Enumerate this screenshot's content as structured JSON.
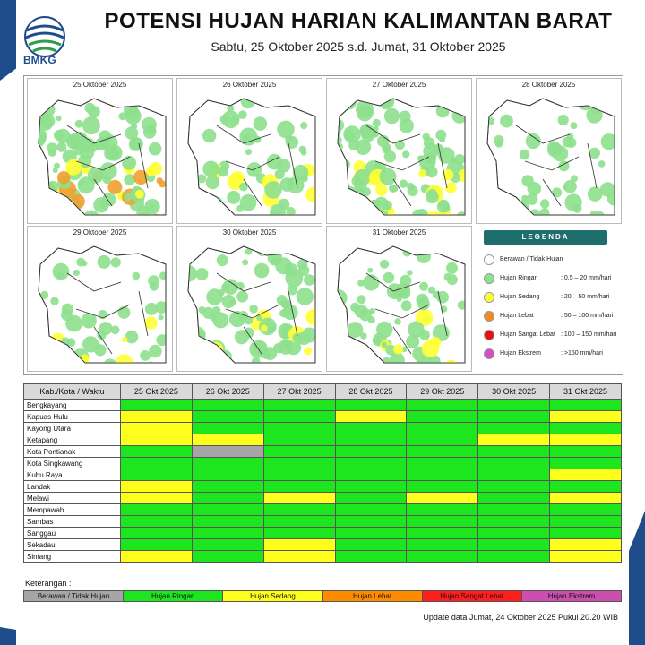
{
  "header": {
    "logo_text": "BMKG",
    "title": "POTENSI HUJAN HARIAN KALIMANTAN BARAT",
    "subtitle": "Sabtu, 25 Oktober 2025 s.d. Jumat, 31 Oktober 2025"
  },
  "maps": [
    {
      "date": "25 Oktober 2025"
    },
    {
      "date": "26 Oktober 2025"
    },
    {
      "date": "27 Oktober 2025"
    },
    {
      "date": "28 Oktober 2025"
    },
    {
      "date": "29 Oktober 2025"
    },
    {
      "date": "30 Oktober 2025"
    },
    {
      "date": "31 Oktober 2025"
    }
  ],
  "legend": {
    "title": "LEGENDA",
    "items": [
      {
        "label": "Berawan / Tidak Hujan",
        "range": "",
        "color": "#ffffff"
      },
      {
        "label": "Hujan Ringan",
        "range": ": 0.5 – 20 mm/hari",
        "color": "#8ee08e"
      },
      {
        "label": "Hujan Sedang",
        "range": ": 20 – 50 mm/hari",
        "color": "#ffff33"
      },
      {
        "label": "Hujan Lebat",
        "range": ": 50 – 100 mm/hari",
        "color": "#f08c1e"
      },
      {
        "label": "Hujan Sangat Lebat",
        "range": ": 100 – 150 mm/hari",
        "color": "#e81010"
      },
      {
        "label": "Hujan Ekstrem",
        "range": ": >150 mm/hari",
        "color": "#d24fc8"
      }
    ]
  },
  "table": {
    "header_label": "Kab./Kota / Waktu",
    "dates": [
      "25 Okt 2025",
      "26 Okt 2025",
      "27 Okt 2025",
      "28 Okt 2025",
      "29 Okt 2025",
      "30 Okt 2025",
      "31 Okt 2025"
    ],
    "rows": [
      {
        "name": "Bengkayang",
        "values": [
          "R",
          "R",
          "R",
          "R",
          "R",
          "R",
          "R"
        ]
      },
      {
        "name": "Kapuas Hulu",
        "values": [
          "S",
          "R",
          "R",
          "S",
          "R",
          "R",
          "S"
        ]
      },
      {
        "name": "Kayong Utara",
        "values": [
          "S",
          "R",
          "R",
          "R",
          "R",
          "R",
          "R"
        ]
      },
      {
        "name": "Ketapang",
        "values": [
          "S",
          "S",
          "R",
          "R",
          "R",
          "S",
          "S"
        ]
      },
      {
        "name": "Kota Pontianak",
        "values": [
          "R",
          "B",
          "R",
          "R",
          "R",
          "R",
          "R"
        ]
      },
      {
        "name": "Kota Singkawang",
        "values": [
          "R",
          "R",
          "R",
          "R",
          "R",
          "R",
          "R"
        ]
      },
      {
        "name": "Kubu Raya",
        "values": [
          "R",
          "R",
          "R",
          "R",
          "R",
          "R",
          "S"
        ]
      },
      {
        "name": "Landak",
        "values": [
          "S",
          "R",
          "R",
          "R",
          "R",
          "R",
          "R"
        ]
      },
      {
        "name": "Melawi",
        "values": [
          "S",
          "R",
          "S",
          "R",
          "S",
          "R",
          "S"
        ]
      },
      {
        "name": "Mempawah",
        "values": [
          "R",
          "R",
          "R",
          "R",
          "R",
          "R",
          "R"
        ]
      },
      {
        "name": "Sambas",
        "values": [
          "R",
          "R",
          "R",
          "R",
          "R",
          "R",
          "R"
        ]
      },
      {
        "name": "Sanggau",
        "values": [
          "R",
          "R",
          "R",
          "R",
          "R",
          "R",
          "R"
        ]
      },
      {
        "name": "Sekadau",
        "values": [
          "R",
          "R",
          "S",
          "R",
          "R",
          "R",
          "S"
        ]
      },
      {
        "name": "Sintang",
        "values": [
          "S",
          "R",
          "S",
          "R",
          "R",
          "R",
          "S"
        ]
      }
    ],
    "category_colors": {
      "B": "#a6a6a6",
      "R": "#1ee61e",
      "S": "#ffff1e",
      "L": "#ff8c00",
      "SL": "#ff1e1e",
      "E": "#cc4fb0"
    }
  },
  "notes": {
    "label": "Keterangan :",
    "keys": [
      {
        "label": "Berawan / Tidak Hujan",
        "color": "#a6a6a6"
      },
      {
        "label": "Hujan Ringan",
        "color": "#1ee61e"
      },
      {
        "label": "Hujan Sedang",
        "color": "#ffff1e"
      },
      {
        "label": "Hujan Lebat",
        "color": "#ff8c00"
      },
      {
        "label": "Hujan Sangat Lebat",
        "color": "#ff1e1e"
      },
      {
        "label": "Hujan Ekstrem",
        "color": "#cc4fb0"
      }
    ]
  },
  "footer": {
    "update": "Update data Jumat, 24 Oktober 2025 Pukul 20.20 WIB"
  }
}
